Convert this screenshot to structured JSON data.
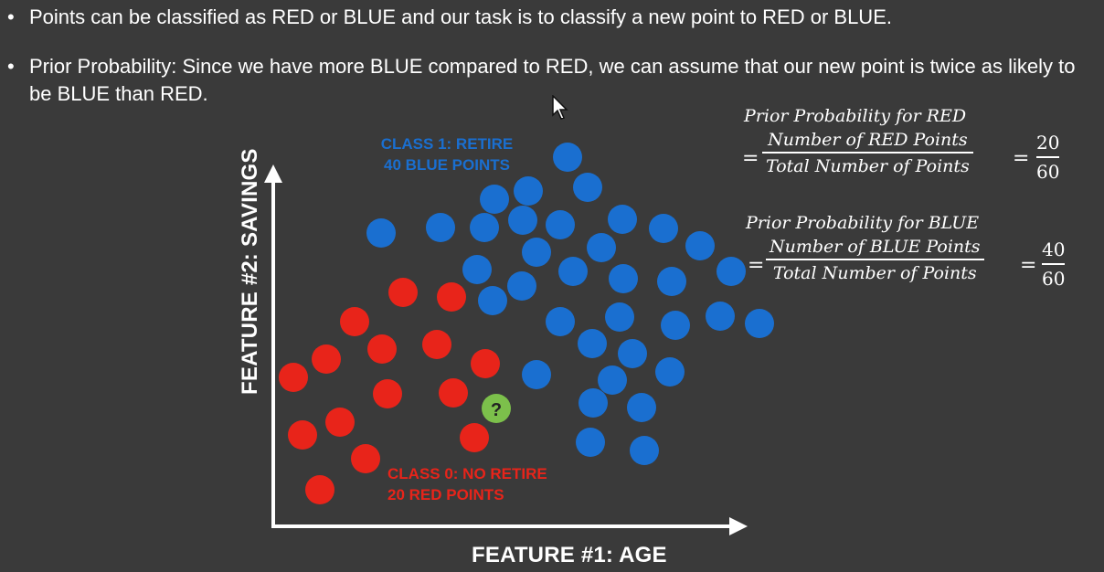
{
  "bullets": [
    {
      "text": "Points can be classified as RED or BLUE and our task is to classify a new point to RED or BLUE."
    },
    {
      "text": "Prior Probability: Since we have more BLUE compared to RED, we can assume that our new point is twice as likely to be BLUE than RED."
    }
  ],
  "bullet_marker": "•",
  "diagram": {
    "x_axis_label": "FEATURE #1: AGE",
    "y_axis_label": "FEATURE #2: SAVINGS",
    "blue_class": {
      "line1": "CLASS 1: RETIRE",
      "line2": "40 BLUE POINTS",
      "color": "#1a6fd0"
    },
    "red_class": {
      "line1": "CLASS 0: NO RETIRE",
      "line2": "20 RED POINTS",
      "color": "#e8241a"
    },
    "unknown_point": {
      "symbol": "?",
      "color": "#7cc04b"
    }
  },
  "formulas": {
    "red": {
      "title": "Prior Probability for RED",
      "numerator": "Number of RED Points",
      "denominator": "Total Number of Points",
      "value_num": "20",
      "value_den": "60",
      "equals": "="
    },
    "blue": {
      "title": "Prior Probability for BLUE",
      "numerator": "Number of BLUE Points",
      "denominator": "Total Number of Points",
      "value_num": "40",
      "value_den": "60",
      "equals": "="
    }
  }
}
